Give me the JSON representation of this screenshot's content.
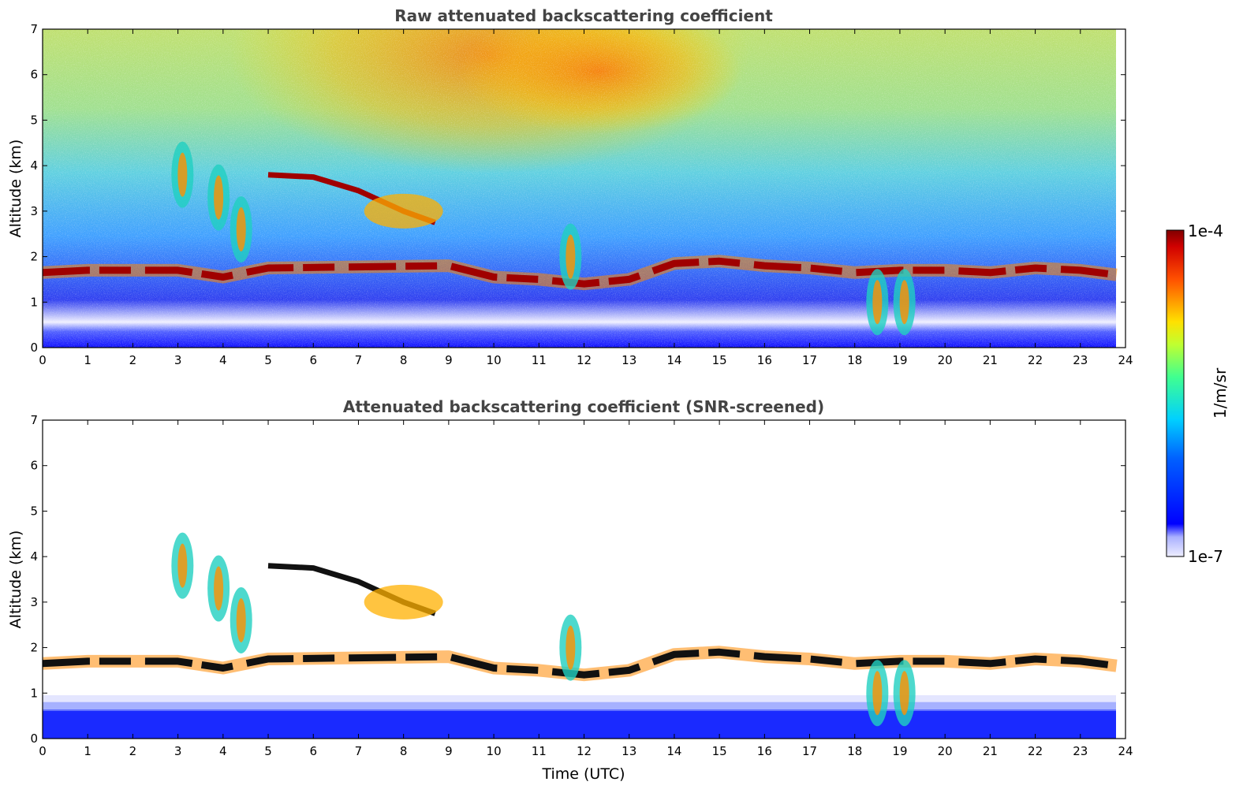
{
  "chart_data": [
    {
      "type": "heatmap",
      "title": "Raw attenuated backscattering coefficient",
      "xlabel": "",
      "ylabel": "Altitude (km)",
      "xlim": [
        0,
        24
      ],
      "ylim": [
        0,
        7
      ],
      "xticks": [
        "0",
        "1",
        "2",
        "3",
        "4",
        "5",
        "6",
        "7",
        "8",
        "9",
        "10",
        "11",
        "12",
        "13",
        "14",
        "15",
        "16",
        "17",
        "18",
        "19",
        "20",
        "21",
        "22",
        "23",
        "24"
      ],
      "yticks": [
        "0",
        "1",
        "2",
        "3",
        "4",
        "5",
        "6",
        "7"
      ],
      "screened": false
    },
    {
      "type": "heatmap",
      "title": "Attenuated backscattering coefficient (SNR-screened)",
      "xlabel": "Time (UTC)",
      "ylabel": "Altitude (km)",
      "xlim": [
        0,
        24
      ],
      "ylim": [
        0,
        7
      ],
      "xticks": [
        "0",
        "1",
        "2",
        "3",
        "4",
        "5",
        "6",
        "7",
        "8",
        "9",
        "10",
        "11",
        "12",
        "13",
        "14",
        "15",
        "16",
        "17",
        "18",
        "19",
        "20",
        "21",
        "22",
        "23",
        "24"
      ],
      "yticks": [
        "0",
        "1",
        "2",
        "3",
        "4",
        "5",
        "6",
        "7"
      ],
      "screened": true
    }
  ],
  "colorbar": {
    "label": "1/m/sr",
    "max_label": "1e-4",
    "min_label": "1e-7",
    "scale": "log"
  },
  "features": {
    "boundary_layer_cloud": [
      [
        0,
        1.65
      ],
      [
        1,
        1.7
      ],
      [
        2,
        1.7
      ],
      [
        3,
        1.7
      ],
      [
        4,
        1.55
      ],
      [
        5,
        1.75
      ],
      [
        9,
        1.8
      ],
      [
        10,
        1.55
      ],
      [
        11,
        1.5
      ],
      [
        12,
        1.4
      ],
      [
        13,
        1.5
      ],
      [
        14,
        1.85
      ],
      [
        15,
        1.9
      ],
      [
        16,
        1.8
      ],
      [
        17,
        1.75
      ],
      [
        18,
        1.65
      ],
      [
        19,
        1.7
      ],
      [
        20,
        1.7
      ],
      [
        21,
        1.65
      ],
      [
        22,
        1.75
      ],
      [
        23,
        1.7
      ],
      [
        23.8,
        1.6
      ]
    ],
    "descending_layer": [
      [
        5,
        3.8
      ],
      [
        6,
        3.75
      ],
      [
        7,
        3.45
      ],
      [
        8,
        3.0
      ],
      [
        8.7,
        2.75
      ]
    ],
    "fall_streaks": [
      [
        3.1,
        3.8
      ],
      [
        3.9,
        3.3
      ],
      [
        4.4,
        2.6
      ],
      [
        11.7,
        2.0
      ],
      [
        18.5,
        1.0
      ],
      [
        19.1,
        1.0
      ]
    ]
  }
}
